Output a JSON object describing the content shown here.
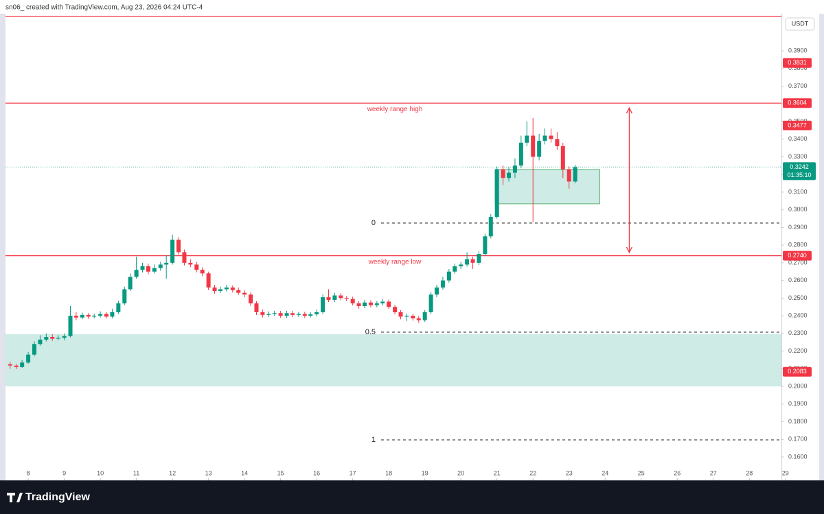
{
  "header": "sn06_ created with TradingView.com, Aug 23, 2026 04:24 UTC-4",
  "footer_logo": "TradingView",
  "chart_data": {
    "type": "candlestick",
    "currency": "USDT",
    "colors": {
      "up": "#089981",
      "down": "#f23645"
    },
    "xlim": [
      7.37,
      28.89
    ],
    "xticks": [
      8,
      9,
      10,
      11,
      12,
      13,
      14,
      15,
      16,
      17,
      18,
      19,
      20,
      21,
      22,
      23,
      24,
      25,
      26,
      27,
      28,
      29
    ],
    "ylim": [
      0.1468,
      0.411
    ],
    "yticks": [
      {
        "value": 0.16,
        "label": "0.1600"
      },
      {
        "value": 0.17,
        "label": "0.1700"
      },
      {
        "value": 0.18,
        "label": "0.1800"
      },
      {
        "value": 0.19,
        "label": "0.1900"
      },
      {
        "value": 0.2,
        "label": "0.2000"
      },
      {
        "value": 0.21,
        "label": "0.2100"
      },
      {
        "value": 0.22,
        "label": "0.2200"
      },
      {
        "value": 0.23,
        "label": "0.2300"
      },
      {
        "value": 0.24,
        "label": "0.2400"
      },
      {
        "value": 0.25,
        "label": "0.2500"
      },
      {
        "value": 0.26,
        "label": "0.2600"
      },
      {
        "value": 0.27,
        "label": "0.2700"
      },
      {
        "value": 0.28,
        "label": "0.2800"
      },
      {
        "value": 0.29,
        "label": "0.2900"
      },
      {
        "value": 0.3,
        "label": "0.3000"
      },
      {
        "value": 0.31,
        "label": "0.3100"
      },
      {
        "value": 0.32,
        "label": "0.3200"
      },
      {
        "value": 0.33,
        "label": "0.3300"
      },
      {
        "value": 0.34,
        "label": "0.3400"
      },
      {
        "value": 0.35,
        "label": "0.3500"
      },
      {
        "value": 0.36,
        "label": "0.3600"
      },
      {
        "value": 0.37,
        "label": "0.3700"
      },
      {
        "value": 0.38,
        "label": "0.3800"
      },
      {
        "value": 0.39,
        "label": "0.3900"
      }
    ],
    "x": [
      7.5,
      7.67,
      7.83,
      8,
      8.17,
      8.33,
      8.5,
      8.67,
      8.83,
      9,
      9.17,
      9.33,
      9.5,
      9.67,
      9.83,
      10,
      10.17,
      10.33,
      10.5,
      10.67,
      10.83,
      11,
      11.17,
      11.33,
      11.5,
      11.67,
      11.83,
      12,
      12.17,
      12.33,
      12.5,
      12.67,
      12.83,
      13,
      13.17,
      13.33,
      13.5,
      13.67,
      13.83,
      14,
      14.17,
      14.33,
      14.5,
      14.67,
      14.83,
      15,
      15.17,
      15.33,
      15.5,
      15.67,
      15.83,
      16,
      16.17,
      16.33,
      16.5,
      16.67,
      16.83,
      17,
      17.17,
      17.33,
      17.5,
      17.67,
      17.83,
      18,
      18.17,
      18.33,
      18.5,
      18.67,
      18.83,
      19,
      19.17,
      19.33,
      19.5,
      19.67,
      19.83,
      20,
      20.17,
      20.33,
      20.5,
      20.67,
      20.83,
      21,
      21.17,
      21.33,
      21.5,
      21.67,
      21.83,
      22,
      22.17,
      22.33,
      22.5,
      22.67,
      22.83,
      23,
      23.17
    ],
    "open": [
      0.2125,
      0.2118,
      0.211,
      0.2135,
      0.218,
      0.224,
      0.2265,
      0.228,
      0.227,
      0.2275,
      0.2285,
      0.24,
      0.239,
      0.2405,
      0.2395,
      0.24,
      0.241,
      0.2395,
      0.242,
      0.247,
      0.255,
      0.262,
      0.266,
      0.268,
      0.265,
      0.267,
      0.269,
      0.27,
      0.283,
      0.276,
      0.27,
      0.269,
      0.266,
      0.264,
      0.256,
      0.254,
      0.255,
      0.256,
      0.2545,
      0.253,
      0.252,
      0.247,
      0.242,
      0.2405,
      0.241,
      0.2415,
      0.24,
      0.2415,
      0.2405,
      0.241,
      0.24,
      0.2408,
      0.242,
      0.2505,
      0.249,
      0.2515,
      0.25,
      0.2495,
      0.247,
      0.2455,
      0.2475,
      0.246,
      0.247,
      0.248,
      0.245,
      0.242,
      0.2395,
      0.24,
      0.2385,
      0.2375,
      0.242,
      0.252,
      0.256,
      0.26,
      0.265,
      0.268,
      0.269,
      0.272,
      0.27,
      0.275,
      0.285,
      0.296,
      0.323,
      0.318,
      0.321,
      0.325,
      0.338,
      0.342,
      0.33,
      0.339,
      0.342,
      0.34,
      0.336,
      0.323,
      0.316
    ],
    "high": [
      0.2137,
      0.2128,
      0.215,
      0.2195,
      0.2255,
      0.229,
      0.23,
      0.2295,
      0.229,
      0.23,
      0.2455,
      0.242,
      0.2418,
      0.2415,
      0.2412,
      0.2425,
      0.242,
      0.244,
      0.2485,
      0.2565,
      0.264,
      0.2735,
      0.27,
      0.2695,
      0.269,
      0.2705,
      0.274,
      0.286,
      0.2845,
      0.2775,
      0.272,
      0.2705,
      0.2675,
      0.265,
      0.2575,
      0.2565,
      0.2575,
      0.2572,
      0.256,
      0.2545,
      0.2532,
      0.2482,
      0.2435,
      0.2425,
      0.2428,
      0.2428,
      0.2428,
      0.2428,
      0.2422,
      0.2422,
      0.242,
      0.2435,
      0.252,
      0.255,
      0.253,
      0.2528,
      0.2512,
      0.2508,
      0.2482,
      0.249,
      0.2488,
      0.2482,
      0.2495,
      0.2492,
      0.2462,
      0.2432,
      0.2412,
      0.2412,
      0.2398,
      0.2432,
      0.2535,
      0.2575,
      0.262,
      0.2665,
      0.2695,
      0.2705,
      0.276,
      0.2735,
      0.2765,
      0.2865,
      0.2975,
      0.3245,
      0.325,
      0.324,
      0.329,
      0.342,
      0.35,
      0.352,
      0.343,
      0.346,
      0.346,
      0.344,
      0.338,
      0.3245,
      0.3255
    ],
    "low": [
      0.21,
      0.2098,
      0.2105,
      0.2128,
      0.217,
      0.223,
      0.2255,
      0.2258,
      0.226,
      0.2262,
      0.2278,
      0.2375,
      0.238,
      0.2382,
      0.2385,
      0.239,
      0.2385,
      0.2385,
      0.241,
      0.246,
      0.254,
      0.261,
      0.2645,
      0.2635,
      0.264,
      0.2655,
      0.261,
      0.269,
      0.2745,
      0.2685,
      0.2675,
      0.2645,
      0.2625,
      0.2545,
      0.2525,
      0.2528,
      0.2538,
      0.2532,
      0.2518,
      0.2505,
      0.2455,
      0.2405,
      0.239,
      0.2392,
      0.2398,
      0.2388,
      0.2388,
      0.2392,
      0.2393,
      0.2388,
      0.239,
      0.2396,
      0.241,
      0.2478,
      0.2478,
      0.2488,
      0.2482,
      0.2458,
      0.244,
      0.2443,
      0.2448,
      0.2448,
      0.2458,
      0.2438,
      0.2408,
      0.238,
      0.237,
      0.2372,
      0.236,
      0.2365,
      0.241,
      0.2505,
      0.2548,
      0.2588,
      0.2638,
      0.2665,
      0.2678,
      0.2665,
      0.2688,
      0.2738,
      0.2838,
      0.295,
      0.314,
      0.316,
      0.318,
      0.3235,
      0.336,
      0.293,
      0.328,
      0.337,
      0.338,
      0.334,
      0.318,
      0.312,
      0.315
    ],
    "close": [
      0.2118,
      0.211,
      0.2135,
      0.218,
      0.224,
      0.2265,
      0.228,
      0.227,
      0.2275,
      0.2285,
      0.24,
      0.239,
      0.2405,
      0.2395,
      0.24,
      0.241,
      0.2395,
      0.242,
      0.247,
      0.255,
      0.262,
      0.266,
      0.268,
      0.265,
      0.267,
      0.269,
      0.27,
      0.283,
      0.276,
      0.27,
      0.269,
      0.266,
      0.264,
      0.256,
      0.254,
      0.255,
      0.256,
      0.2545,
      0.253,
      0.252,
      0.247,
      0.242,
      0.2405,
      0.241,
      0.2415,
      0.24,
      0.2415,
      0.2405,
      0.241,
      0.24,
      0.2408,
      0.242,
      0.2505,
      0.249,
      0.2515,
      0.25,
      0.2495,
      0.247,
      0.2455,
      0.2475,
      0.246,
      0.247,
      0.248,
      0.245,
      0.242,
      0.2395,
      0.24,
      0.2385,
      0.2375,
      0.242,
      0.252,
      0.256,
      0.26,
      0.265,
      0.268,
      0.269,
      0.272,
      0.27,
      0.275,
      0.285,
      0.296,
      0.323,
      0.318,
      0.321,
      0.325,
      0.338,
      0.342,
      0.33,
      0.339,
      0.342,
      0.34,
      0.336,
      0.323,
      0.316,
      0.3242
    ],
    "price_lines": [
      {
        "price": 0.3604,
        "price_label": "0.3604",
        "text": "weekly range high",
        "color": "#f23645"
      },
      {
        "price": 0.274,
        "price_label": "0.2740",
        "text": "weekly range low",
        "color": "#f23645"
      }
    ],
    "price_badges": [
      {
        "price": 0.3831,
        "label": "0.3831",
        "color": "#f23645"
      },
      {
        "price": 0.3477,
        "label": "0.3477",
        "color": "#f23645"
      },
      {
        "price": 0.2083,
        "label": "0.2083",
        "color": "#f23645"
      }
    ],
    "current_price": {
      "price": 0.3242,
      "label": "0.3242",
      "countdown": "01:35:10",
      "color": "#089981"
    },
    "fib_levels": [
      {
        "level": 0,
        "price": 0.2925
      },
      {
        "level": 0.5,
        "price": 0.2307
      },
      {
        "level": 1,
        "price": 0.1697
      }
    ],
    "zones": [
      {
        "top": 0.2296,
        "bottom": 0.2,
        "x_start": 7.37,
        "x_end": 28.89
      },
      {
        "top": 0.3228,
        "bottom": 0.3034,
        "x_start": 20.95,
        "x_end": 23.85
      }
    ],
    "range_arrow": {
      "x": 24.67,
      "from": 0.3577,
      "to": 0.2758
    }
  }
}
